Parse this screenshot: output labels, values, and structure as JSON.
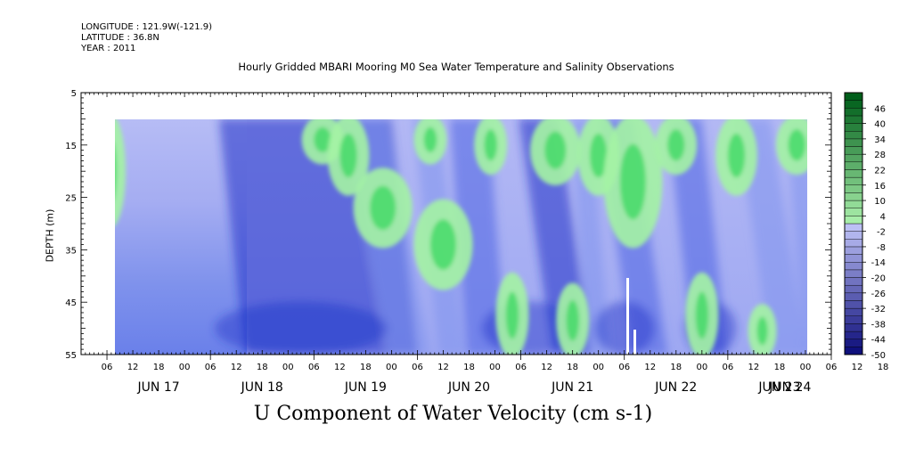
{
  "header": {
    "longitude": "LONGITUDE : 121.9W(-121.9)",
    "latitude": "LATITUDE : 36.8N",
    "year": "YEAR : 2011",
    "title": "Hourly Gridded MBARI Mooring M0 Sea Water Temperature and Salinity Observations"
  },
  "chart_data": {
    "type": "heatmap",
    "title": "U Component of Water Velocity (cm s-1)",
    "subtitle": "Hourly Gridded MBARI Mooring M0 Sea Water Temperature and Salinity Observations",
    "ylabel": "DEPTH (m)",
    "xlabel": "",
    "y_axis": {
      "range": [
        5,
        55
      ],
      "inverted": true,
      "ticks": [
        5,
        15,
        25,
        35,
        45,
        55
      ]
    },
    "x_axis": {
      "hour_ticks": [
        "06",
        "12",
        "18",
        "00",
        "06",
        "12",
        "18",
        "00",
        "06",
        "12",
        "18",
        "00",
        "06",
        "12",
        "18",
        "00",
        "06",
        "12",
        "18",
        "00",
        "06",
        "12",
        "18",
        "00",
        "06",
        "12",
        "18",
        "00",
        "06",
        "12",
        "18",
        "00"
      ],
      "day_labels": [
        "JUN 17",
        "JUN 18",
        "JUN 19",
        "JUN 20",
        "JUN 21",
        "JUN 22",
        "JUN 23",
        "JUN 24"
      ]
    },
    "colorbar": {
      "labels": [
        "46",
        "40",
        "34",
        "28",
        "22",
        "16",
        "10",
        "4",
        "-2",
        "-8",
        "-14",
        "-20",
        "-26",
        "-32",
        "-38",
        "-44",
        "-50"
      ],
      "range": [
        -50,
        52
      ]
    },
    "data_extent": {
      "depth_top": 10,
      "depth_bottom": 55,
      "start": "JUN 17 09:00",
      "end": "JUN 23 21:00"
    },
    "pattern": "Alternating bands of positive (green, up to ~10 cm/s) and negative (blue, down to ~-30 cm/s) velocity, roughly tidal; JUN 17–18 nearly uniform weak negative with stronger negatives at depth."
  },
  "colors": {
    "green_strong": "#3ad860",
    "green_light": "#a4f3a4",
    "blue_pale": "#b1b6f4",
    "blue_mid": "#8094ee",
    "blue_strong": "#4a60e4",
    "blue_deep": "#1e32c8"
  }
}
